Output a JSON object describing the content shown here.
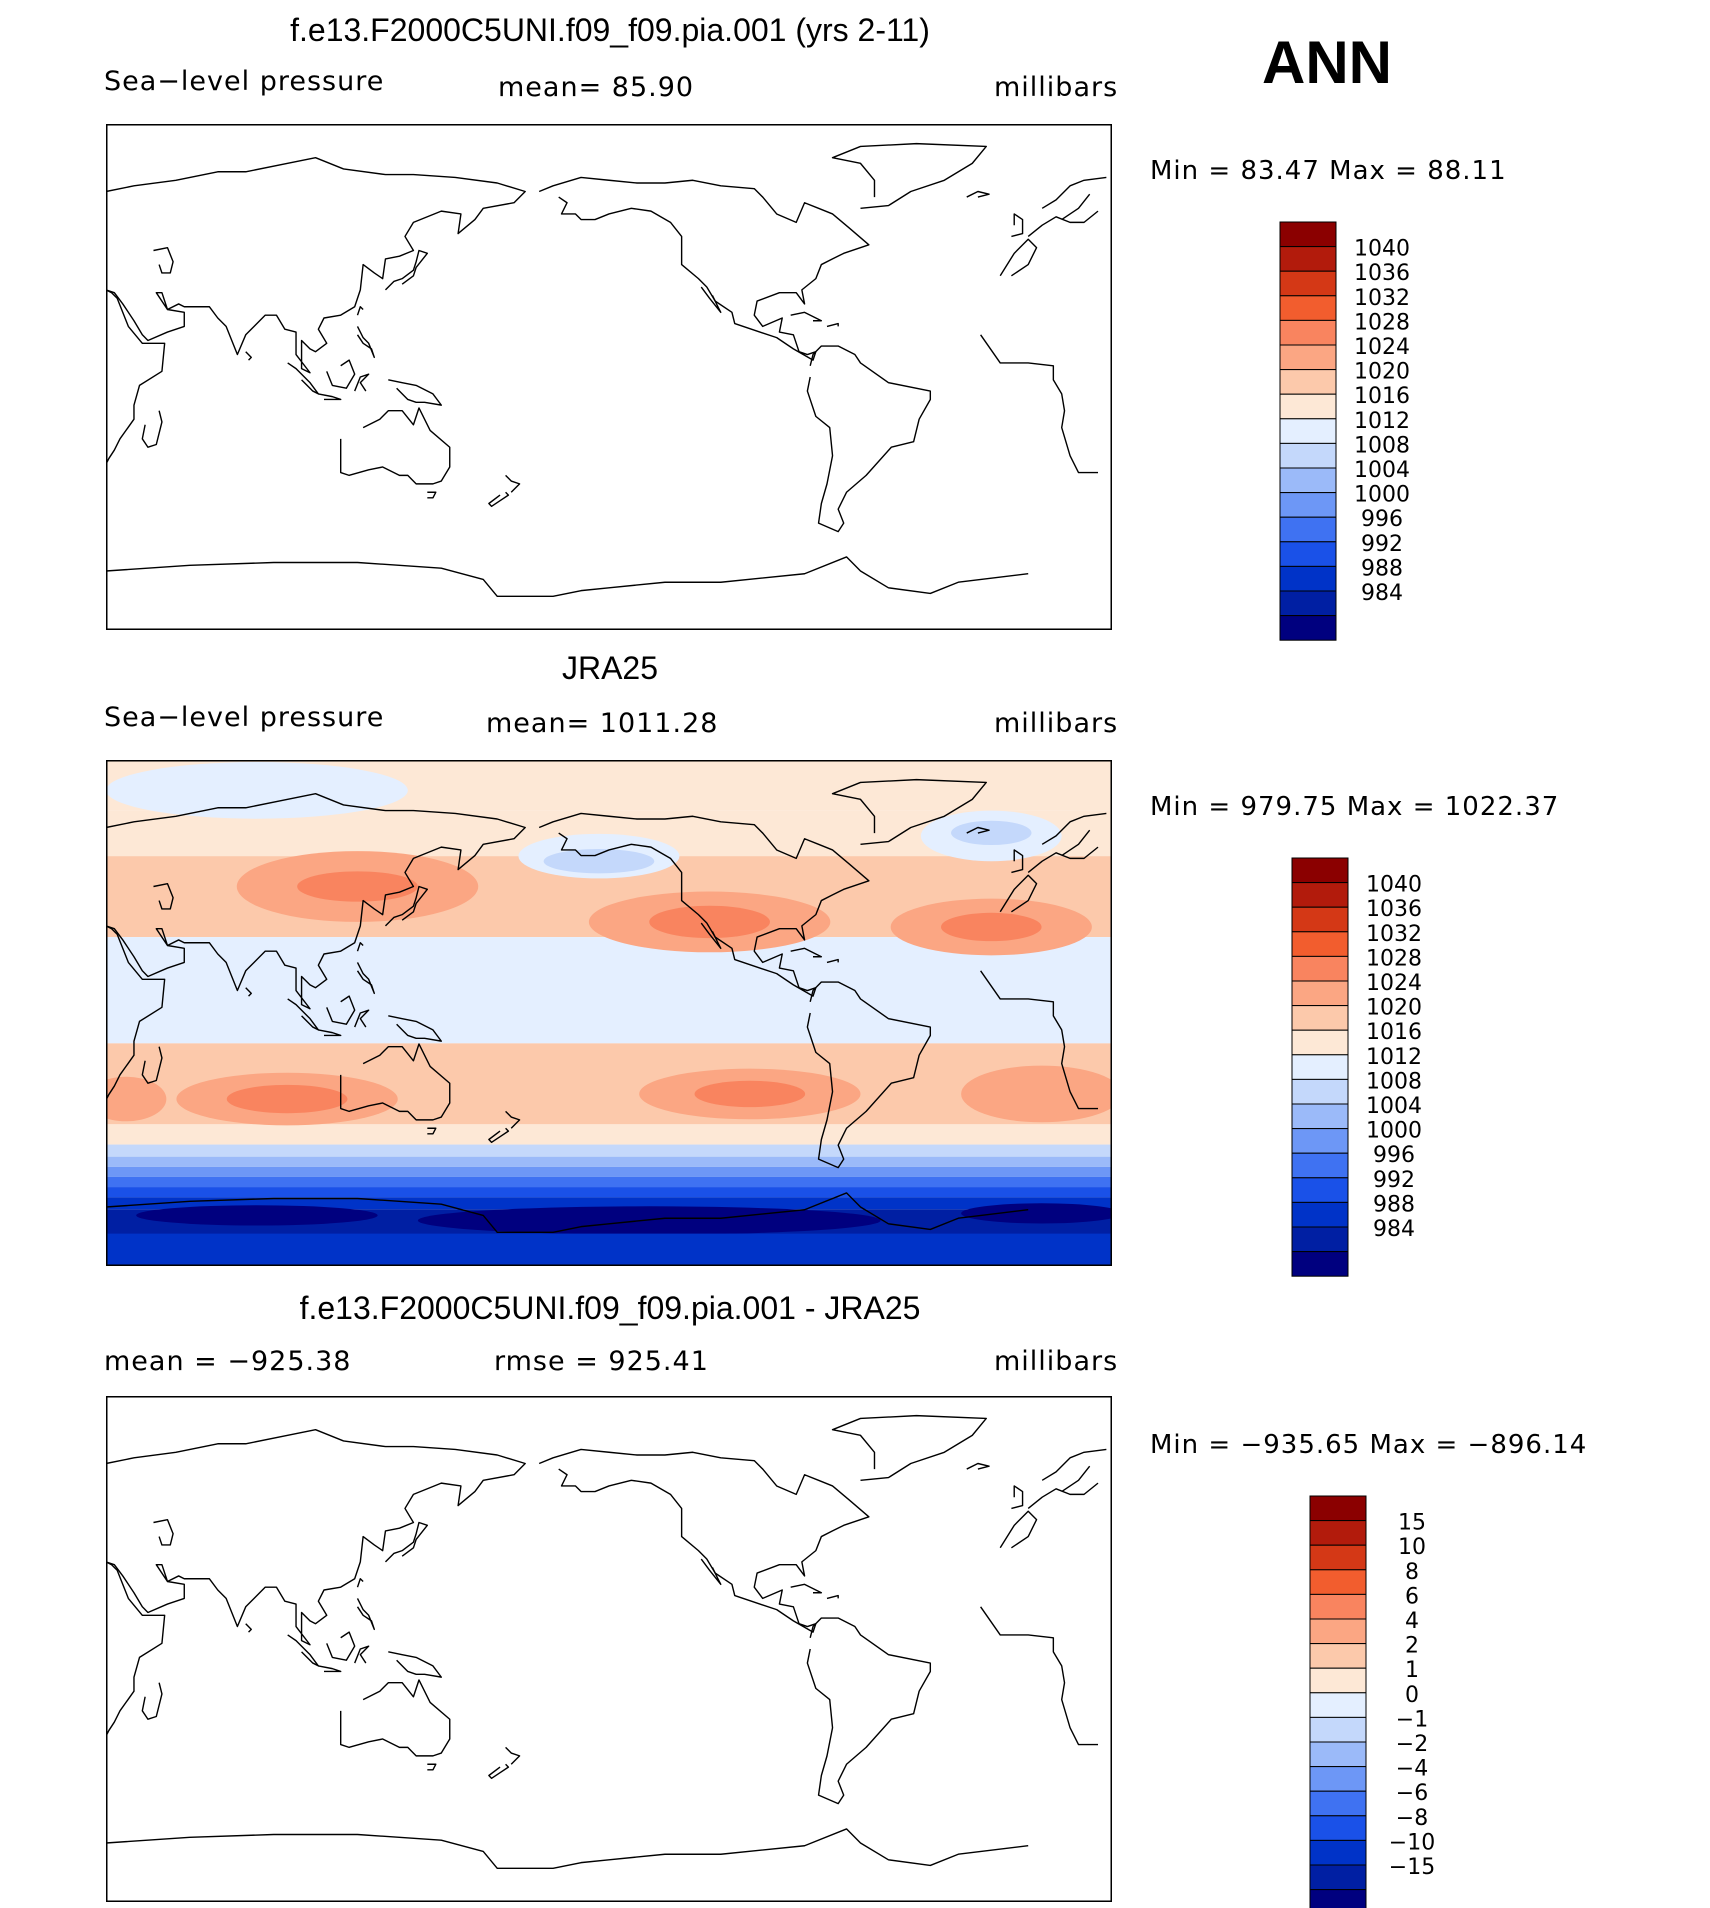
{
  "season": "ANN",
  "colors": {
    "levels": [
      "#00007f",
      "#001fa3",
      "#0033c8",
      "#1a51e8",
      "#3f72f2",
      "#6d97f6",
      "#9bbaf9",
      "#c4d8fb",
      "#e4efff",
      "#fde8d6",
      "#fcc9ab",
      "#fba683",
      "#f9845f",
      "#f25d2e",
      "#d43816",
      "#b21b0c",
      "#8b0000"
    ]
  },
  "panels": [
    {
      "title": "f.e13.F2000C5UNI.f09_f09.pia.001 (yrs 2-11)",
      "left": "Sea−level pressure",
      "center": "mean=   85.90",
      "right": "millibars",
      "minmax": "Min  =   83.47  Max  =    88.11",
      "filled": false
    },
    {
      "title": "JRA25",
      "left": "Sea−level pressure",
      "center": "mean=  1011.28",
      "right": "millibars",
      "minmax": "Min  =  979.75  Max  =  1022.37",
      "filled": true
    },
    {
      "title": "f.e13.F2000C5UNI.f09_f09.pia.001 - JRA25",
      "left": "mean  =  −925.38",
      "center": "rmse  =  925.41",
      "right": "millibars",
      "minmax": "Min  =  −935.65  Max  =  −896.14",
      "filled": false
    }
  ],
  "chart_data": [
    {
      "type": "heatmap",
      "title": "f.e13.F2000C5UNI.f09_f09.pia.001 (yrs 2-11)",
      "variable": "Sea−level pressure",
      "units": "millibars",
      "mean": 85.9,
      "min": 83.47,
      "max": 88.11,
      "colorbar_levels": [
        "1040",
        "1036",
        "1032",
        "1028",
        "1024",
        "1020",
        "1016",
        "1012",
        "1008",
        "1004",
        "1000",
        "996",
        "992",
        "988",
        "984"
      ]
    },
    {
      "type": "heatmap",
      "title": "JRA25",
      "variable": "Sea−level pressure",
      "units": "millibars",
      "mean": 1011.28,
      "min": 979.75,
      "max": 1022.37,
      "colorbar_levels": [
        "1040",
        "1036",
        "1032",
        "1028",
        "1024",
        "1020",
        "1016",
        "1012",
        "1008",
        "1004",
        "1000",
        "996",
        "992",
        "988",
        "984"
      ]
    },
    {
      "type": "heatmap",
      "title": "f.e13.F2000C5UNI.f09_f09.pia.001 - JRA25",
      "units": "millibars",
      "mean": -925.38,
      "rmse": 925.41,
      "min": -935.65,
      "max": -896.14,
      "colorbar_levels": [
        "15",
        "10",
        "8",
        "6",
        "4",
        "2",
        "1",
        "0",
        "−1",
        "−2",
        "−4",
        "−6",
        "−8",
        "−10",
        "−15"
      ]
    }
  ]
}
